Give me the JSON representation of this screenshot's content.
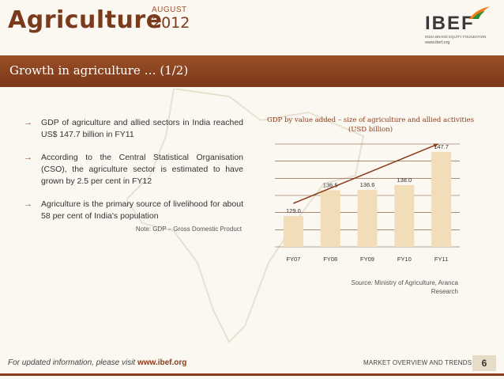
{
  "header": {
    "section_title": "Agriculture",
    "month": "AUGUST",
    "year": "2012",
    "logo_text": "IBEF",
    "logo_subtitle": "INDIA BRAND EQUITY FOUNDATION",
    "logo_url": "www.ibef.org"
  },
  "title_bar": {
    "title": "Growth in agriculture … (1/2)"
  },
  "bullets": [
    {
      "text": "GDP of agriculture and allied sectors in India reached US$ 147.7 billion in FY11"
    },
    {
      "text": "According to the Central Statistical Organisation (CSO), the agriculture sector is estimated to have grown by 2.5 per cent in FY12"
    },
    {
      "text": "Agriculture is the primary source of livelihood for about 58 per cent of India's population"
    }
  ],
  "note": "Note: GDP – Gross Domestic Product",
  "chart_data": {
    "type": "bar",
    "title": "GDP by value added – size of agriculture and allied activities (USD billion)",
    "categories": [
      "FY07",
      "FY08",
      "FY09",
      "FY10",
      "FY11"
    ],
    "values": [
      129.0,
      136.5,
      136.6,
      138.0,
      147.7
    ],
    "value_labels": [
      "129.0",
      "136.5",
      "136.6",
      "138.0",
      "147.7"
    ],
    "ylim": [
      120,
      150
    ],
    "grid": true,
    "trend_arrow": true,
    "colors": {
      "bar": "#f2ddb9",
      "grid": "#7a4a2a",
      "label": "#333333",
      "arrow": "#8b3a1a"
    }
  },
  "source": {
    "label": "Source:",
    "text": "Ministry of Agriculture, Aranca Research"
  },
  "footer": {
    "left_text": "For updated information, please visit ",
    "left_link": "www.ibef.org",
    "right_text": "MARKET OVERVIEW AND TRENDS",
    "page": "6"
  }
}
